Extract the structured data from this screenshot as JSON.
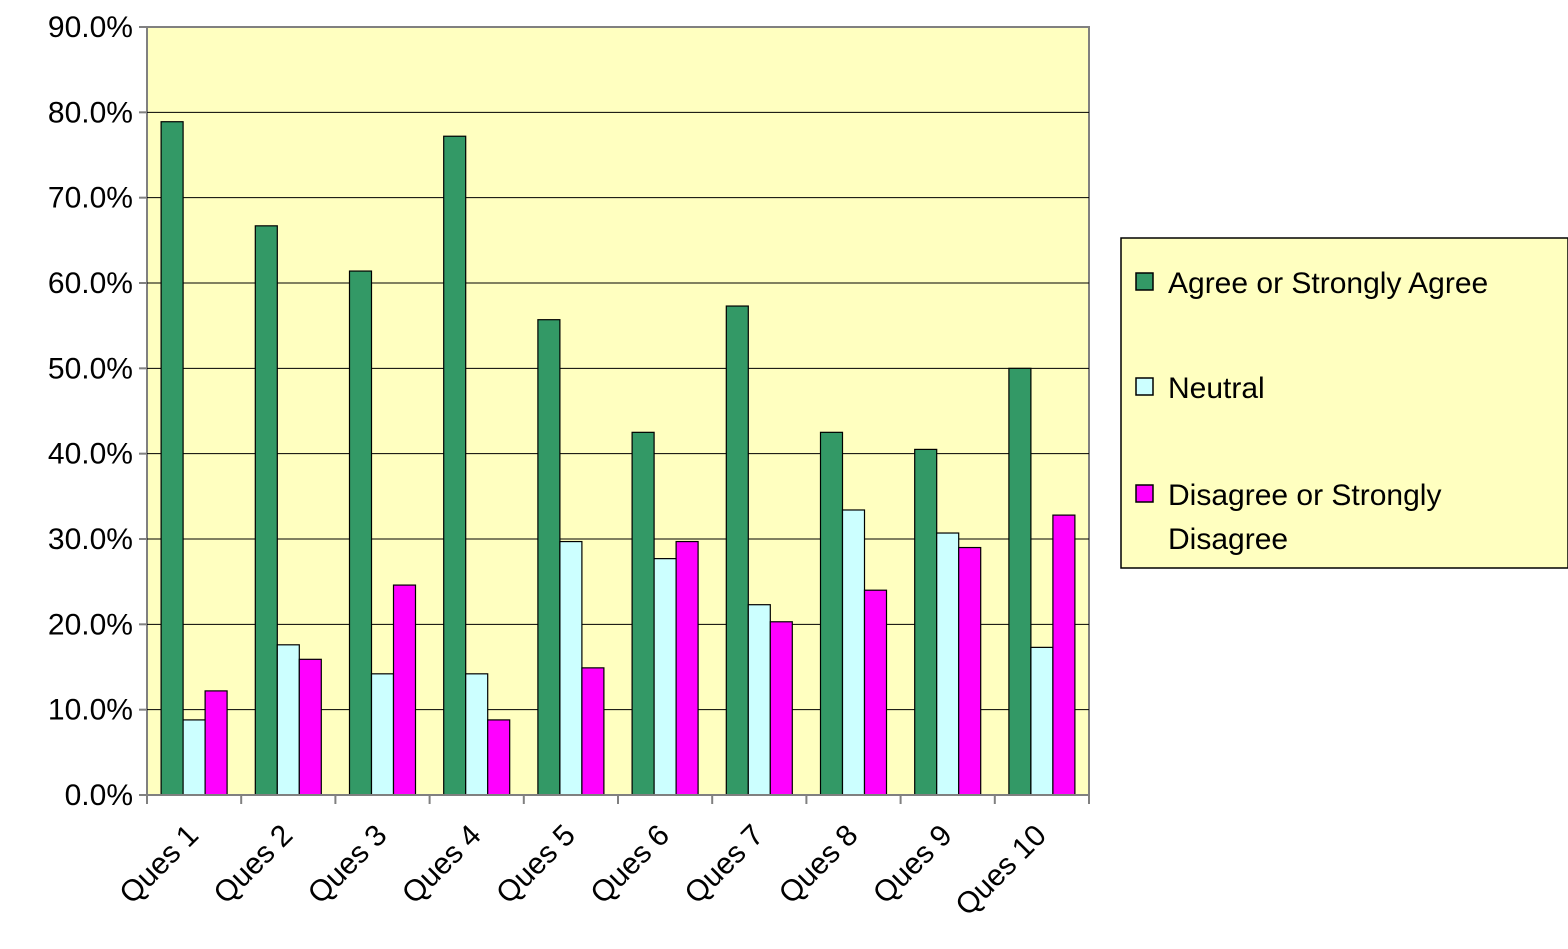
{
  "chart_data": {
    "type": "bar",
    "title": "",
    "xlabel": "",
    "ylabel": "",
    "categories": [
      "Ques 1",
      "Ques 2",
      "Ques 3",
      "Ques 4",
      "Ques 5",
      "Ques 6",
      "Ques 7",
      "Ques 8",
      "Ques 9",
      "Ques 10"
    ],
    "ylim": [
      0,
      0.9
    ],
    "y_ticks": [
      0,
      0.1,
      0.2,
      0.3,
      0.4,
      0.5,
      0.6,
      0.7,
      0.8,
      0.9
    ],
    "y_tick_labels": [
      "0.0%",
      "10.0%",
      "20.0%",
      "30.0%",
      "40.0%",
      "50.0%",
      "60.0%",
      "70.0%",
      "80.0%",
      "90.0%"
    ],
    "grid": true,
    "legend_position": "right",
    "plot_background": "#ffffc0",
    "series": [
      {
        "name": "Agree or Strongly Agree",
        "color": "#339966",
        "legend_lines": [
          "Agree or Strongly Agree"
        ],
        "values": [
          0.789,
          0.667,
          0.614,
          0.772,
          0.557,
          0.425,
          0.573,
          0.425,
          0.405,
          0.5
        ]
      },
      {
        "name": "Neutral",
        "color": "#ccffff",
        "legend_lines": [
          "Neutral"
        ],
        "values": [
          0.088,
          0.176,
          0.142,
          0.142,
          0.297,
          0.277,
          0.223,
          0.334,
          0.307,
          0.173
        ]
      },
      {
        "name": "Disagree or Strongly Disagree",
        "color": "#ff00ff",
        "legend_lines": [
          "Disagree or Strongly",
          "Disagree"
        ],
        "values": [
          0.122,
          0.159,
          0.246,
          0.088,
          0.149,
          0.297,
          0.203,
          0.24,
          0.29,
          0.328
        ]
      }
    ]
  }
}
